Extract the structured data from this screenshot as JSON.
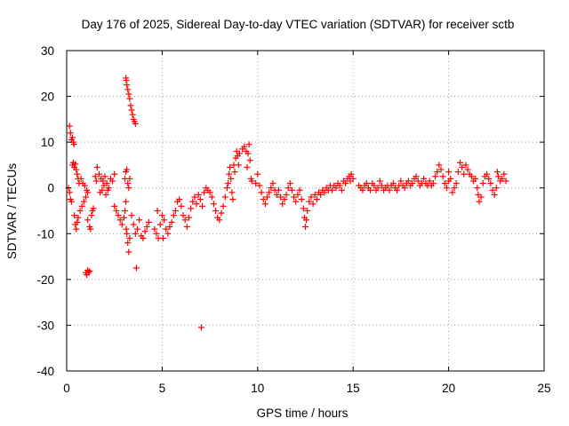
{
  "chart_data": {
    "type": "scatter",
    "title": "Day 176 of 2025, Sidereal Day-to-day VTEC variation (SDTVAR) for receiver sctb",
    "xlabel": "GPS time / hours",
    "ylabel": "SDTVAR / TECUs",
    "xlim": [
      0,
      25
    ],
    "ylim": [
      -40,
      30
    ],
    "x_ticks": [
      0,
      5,
      10,
      15,
      20,
      25
    ],
    "y_ticks": [
      30,
      20,
      10,
      0,
      -10,
      -20,
      -30,
      -40
    ],
    "grid": true,
    "marker": "+",
    "color": "#ff0000",
    "series": [
      {
        "name": "SDTVAR",
        "points": [
          [
            0.15,
            13.5
          ],
          [
            0.2,
            12.0
          ],
          [
            0.25,
            10.5
          ],
          [
            0.3,
            11.0
          ],
          [
            0.35,
            10.0
          ],
          [
            0.38,
            9.5
          ],
          [
            0.1,
            0.0
          ],
          [
            0.15,
            -1.0
          ],
          [
            0.2,
            -2.5
          ],
          [
            0.25,
            -3.0
          ],
          [
            0.3,
            5.0
          ],
          [
            0.35,
            5.5
          ],
          [
            0.4,
            4.5
          ],
          [
            0.45,
            5.2
          ],
          [
            0.5,
            4.0
          ],
          [
            0.55,
            3.0
          ],
          [
            0.6,
            2.0
          ],
          [
            0.65,
            1.0
          ],
          [
            0.4,
            -6.0
          ],
          [
            0.45,
            -8.0
          ],
          [
            0.5,
            -9.0
          ],
          [
            0.55,
            -7.5
          ],
          [
            0.6,
            -6.5
          ],
          [
            0.7,
            -5.0
          ],
          [
            0.8,
            -4.0
          ],
          [
            0.9,
            -3.0
          ],
          [
            1.0,
            -2.0
          ],
          [
            0.75,
            2.0
          ],
          [
            0.85,
            1.0
          ],
          [
            0.95,
            0.5
          ],
          [
            1.05,
            -0.5
          ],
          [
            1.1,
            -1.0
          ],
          [
            1.0,
            -18.5
          ],
          [
            1.05,
            -19.0
          ],
          [
            1.1,
            -18.0
          ],
          [
            1.15,
            -18.5
          ],
          [
            1.2,
            -18.2
          ],
          [
            1.1,
            -7.0
          ],
          [
            1.2,
            -8.5
          ],
          [
            1.25,
            -9.0
          ],
          [
            1.3,
            -6.0
          ],
          [
            1.35,
            -5.0
          ],
          [
            1.4,
            -4.5
          ],
          [
            1.5,
            2.5
          ],
          [
            1.55,
            1.5
          ],
          [
            1.6,
            4.5
          ],
          [
            1.7,
            3.0
          ],
          [
            1.8,
            2.0
          ],
          [
            1.9,
            1.5
          ],
          [
            2.0,
            2.5
          ],
          [
            2.1,
            1.0
          ],
          [
            2.2,
            0.0
          ],
          [
            2.3,
            2.0
          ],
          [
            2.4,
            1.5
          ],
          [
            2.5,
            3.0
          ],
          [
            1.75,
            -1.0
          ],
          [
            1.85,
            -0.5
          ],
          [
            1.95,
            0.5
          ],
          [
            2.05,
            -1.5
          ],
          [
            2.15,
            -0.5
          ],
          [
            2.5,
            -4.0
          ],
          [
            2.6,
            -5.0
          ],
          [
            2.7,
            -6.0
          ],
          [
            2.8,
            -7.0
          ],
          [
            2.9,
            -8.0
          ],
          [
            3.0,
            -6.5
          ],
          [
            3.05,
            -5.0
          ],
          [
            3.1,
            -3.0
          ],
          [
            3.12,
            -9.0
          ],
          [
            3.15,
            -10.0
          ],
          [
            3.2,
            -12.0
          ],
          [
            3.25,
            -14.0
          ],
          [
            3.3,
            -11.0
          ],
          [
            3.1,
            24.0
          ],
          [
            3.12,
            23.5
          ],
          [
            3.15,
            22.5
          ],
          [
            3.2,
            21.5
          ],
          [
            3.25,
            20.5
          ],
          [
            3.3,
            19.5
          ],
          [
            3.35,
            18.0
          ],
          [
            3.4,
            17.0
          ],
          [
            3.45,
            16.0
          ],
          [
            3.5,
            15.0
          ],
          [
            3.55,
            14.5
          ],
          [
            3.6,
            14.0
          ],
          [
            3.05,
            2.0
          ],
          [
            3.1,
            3.5
          ],
          [
            3.15,
            4.0
          ],
          [
            3.2,
            1.0
          ],
          [
            3.25,
            0.0
          ],
          [
            3.3,
            2.0
          ],
          [
            3.4,
            -6.0
          ],
          [
            3.5,
            -8.0
          ],
          [
            3.6,
            -10.0
          ],
          [
            3.7,
            -9.0
          ],
          [
            3.8,
            -7.0
          ],
          [
            3.9,
            -10.5
          ],
          [
            4.0,
            -11.0
          ],
          [
            4.1,
            -9.5
          ],
          [
            4.2,
            -8.5
          ],
          [
            4.3,
            -7.5
          ],
          [
            3.65,
            -17.5
          ],
          [
            4.6,
            -9.0
          ],
          [
            4.7,
            -10.0
          ],
          [
            4.8,
            -11.0
          ],
          [
            4.9,
            -8.0
          ],
          [
            5.0,
            -6.0
          ],
          [
            5.1,
            -7.0
          ],
          [
            5.2,
            -9.0
          ],
          [
            5.3,
            -10.0
          ],
          [
            5.4,
            -8.5
          ],
          [
            5.5,
            -7.5
          ],
          [
            4.75,
            -5.0
          ],
          [
            5.05,
            -11.0
          ],
          [
            5.6,
            -6.0
          ],
          [
            5.7,
            -5.0
          ],
          [
            5.8,
            -3.0
          ],
          [
            5.9,
            -2.5
          ],
          [
            6.0,
            -4.0
          ],
          [
            6.1,
            -6.0
          ],
          [
            6.2,
            -7.0
          ],
          [
            6.3,
            -8.5
          ],
          [
            6.4,
            -6.5
          ],
          [
            6.5,
            -4.5
          ],
          [
            6.6,
            -3.0
          ],
          [
            6.7,
            -2.0
          ],
          [
            6.8,
            -3.5
          ],
          [
            6.9,
            -1.5
          ],
          [
            7.0,
            -2.5
          ],
          [
            7.1,
            -4.0
          ],
          [
            7.2,
            -1.0
          ],
          [
            7.3,
            0.0
          ],
          [
            7.4,
            -0.5
          ],
          [
            7.5,
            -1.0
          ],
          [
            7.6,
            -2.0
          ],
          [
            7.7,
            -3.5
          ],
          [
            7.8,
            -5.0
          ],
          [
            7.9,
            -6.5
          ],
          [
            8.0,
            -7.0
          ],
          [
            8.1,
            -5.5
          ],
          [
            8.2,
            -4.0
          ],
          [
            8.3,
            -2.0
          ],
          [
            8.4,
            0.0
          ],
          [
            7.05,
            -30.5
          ],
          [
            8.45,
            1.0
          ],
          [
            8.5,
            3.0
          ],
          [
            8.55,
            4.5
          ],
          [
            8.6,
            2.0
          ],
          [
            8.65,
            -1.0
          ],
          [
            8.7,
            -2.5
          ],
          [
            8.75,
            5.0
          ],
          [
            8.8,
            3.5
          ],
          [
            8.85,
            6.5
          ],
          [
            8.9,
            8.0
          ],
          [
            8.95,
            7.0
          ],
          [
            9.0,
            5.0
          ],
          [
            9.05,
            7.5
          ],
          [
            9.2,
            8.5
          ],
          [
            9.3,
            9.0
          ],
          [
            9.4,
            8.0
          ],
          [
            9.5,
            7.5
          ],
          [
            9.55,
            9.5
          ],
          [
            9.6,
            6.0
          ],
          [
            9.45,
            4.5
          ],
          [
            9.65,
            2.0
          ],
          [
            9.7,
            1.5
          ],
          [
            9.9,
            1.0
          ],
          [
            10.0,
            3.0
          ],
          [
            10.1,
            0.5
          ],
          [
            10.2,
            -1.0
          ],
          [
            10.3,
            -2.5
          ],
          [
            10.4,
            -3.5
          ],
          [
            10.5,
            -2.0
          ],
          [
            10.6,
            -1.0
          ],
          [
            10.7,
            0.0
          ],
          [
            10.8,
            1.0
          ],
          [
            10.9,
            -0.5
          ],
          [
            11.0,
            -1.5
          ],
          [
            11.1,
            -0.5
          ],
          [
            11.2,
            -2.0
          ],
          [
            11.3,
            -3.5
          ],
          [
            11.4,
            -2.5
          ],
          [
            11.5,
            -1.5
          ],
          [
            11.6,
            0.0
          ],
          [
            11.7,
            1.0
          ],
          [
            11.8,
            -0.5
          ],
          [
            11.9,
            -2.0
          ],
          [
            12.0,
            -3.0
          ],
          [
            12.1,
            -1.5
          ],
          [
            12.2,
            -0.5
          ],
          [
            12.3,
            -2.5
          ],
          [
            12.4,
            -4.5
          ],
          [
            12.45,
            -6.5
          ],
          [
            12.5,
            -8.5
          ],
          [
            12.55,
            -7.0
          ],
          [
            12.6,
            -5.0
          ],
          [
            12.7,
            -3.0
          ],
          [
            12.8,
            -2.0
          ],
          [
            12.9,
            -3.5
          ],
          [
            13.0,
            -1.5
          ],
          [
            13.1,
            -2.5
          ],
          [
            13.2,
            -1.0
          ],
          [
            13.3,
            -1.5
          ],
          [
            13.4,
            -0.5
          ],
          [
            13.5,
            -1.0
          ],
          [
            13.6,
            0.0
          ],
          [
            13.7,
            -0.5
          ],
          [
            13.8,
            0.5
          ],
          [
            13.9,
            -0.5
          ],
          [
            14.0,
            0.5
          ],
          [
            14.1,
            0.0
          ],
          [
            14.2,
            1.0
          ],
          [
            14.3,
            0.5
          ],
          [
            14.4,
            -0.5
          ],
          [
            14.5,
            1.5
          ],
          [
            14.6,
            1.0
          ],
          [
            14.7,
            2.0
          ],
          [
            14.8,
            2.5
          ],
          [
            14.9,
            3.0
          ],
          [
            15.0,
            2.0
          ],
          [
            14.85,
            1.5
          ],
          [
            15.3,
            0.5
          ],
          [
            15.4,
            0.0
          ],
          [
            15.5,
            -0.5
          ],
          [
            15.6,
            0.5
          ],
          [
            15.7,
            1.0
          ],
          [
            15.8,
            0.0
          ],
          [
            15.9,
            -0.5
          ],
          [
            16.0,
            1.0
          ],
          [
            16.1,
            0.5
          ],
          [
            16.2,
            -0.5
          ],
          [
            16.3,
            0.0
          ],
          [
            16.4,
            1.5
          ],
          [
            16.5,
            0.5
          ],
          [
            16.6,
            -0.5
          ],
          [
            16.7,
            0.0
          ],
          [
            16.8,
            0.5
          ],
          [
            16.9,
            -0.5
          ],
          [
            17.0,
            0.5
          ],
          [
            17.1,
            1.0
          ],
          [
            17.2,
            0.0
          ],
          [
            17.3,
            -0.5
          ],
          [
            17.4,
            0.5
          ],
          [
            17.5,
            1.5
          ],
          [
            17.6,
            0.5
          ],
          [
            17.7,
            0.0
          ],
          [
            17.8,
            1.0
          ],
          [
            17.9,
            1.5
          ],
          [
            18.0,
            0.5
          ],
          [
            18.1,
            1.0
          ],
          [
            18.2,
            2.0
          ],
          [
            18.3,
            2.5
          ],
          [
            18.4,
            1.5
          ],
          [
            18.5,
            0.5
          ],
          [
            18.6,
            1.0
          ],
          [
            18.7,
            2.0
          ],
          [
            18.8,
            1.0
          ],
          [
            18.9,
            0.5
          ],
          [
            19.0,
            1.5
          ],
          [
            19.1,
            0.5
          ],
          [
            19.2,
            1.0
          ],
          [
            19.3,
            2.5
          ],
          [
            19.4,
            3.5
          ],
          [
            19.5,
            5.0
          ],
          [
            19.6,
            4.0
          ],
          [
            19.7,
            2.5
          ],
          [
            19.8,
            1.0
          ],
          [
            19.9,
            0.0
          ],
          [
            20.0,
            1.5
          ],
          [
            20.0,
            3.5
          ],
          [
            20.1,
            2.0
          ],
          [
            20.2,
            -1.0
          ],
          [
            20.3,
            0.0
          ],
          [
            20.4,
            1.0
          ],
          [
            20.5,
            3.5
          ],
          [
            20.6,
            5.5
          ],
          [
            20.7,
            4.5
          ],
          [
            20.8,
            3.0
          ],
          [
            20.9,
            5.0
          ],
          [
            21.0,
            4.0
          ],
          [
            21.1,
            3.0
          ],
          [
            21.2,
            2.5
          ],
          [
            21.3,
            1.5
          ],
          [
            21.4,
            2.0
          ],
          [
            21.5,
            0.0
          ],
          [
            21.55,
            -1.5
          ],
          [
            21.6,
            -3.0
          ],
          [
            21.7,
            -2.0
          ],
          [
            21.8,
            1.0
          ],
          [
            21.9,
            2.5
          ],
          [
            22.0,
            3.0
          ],
          [
            22.1,
            2.0
          ],
          [
            22.2,
            1.0
          ],
          [
            22.3,
            -0.5
          ],
          [
            22.4,
            -1.5
          ],
          [
            22.5,
            0.0
          ],
          [
            22.55,
            3.5
          ],
          [
            22.6,
            2.5
          ],
          [
            22.7,
            1.5
          ],
          [
            22.8,
            2.0
          ],
          [
            22.9,
            3.0
          ],
          [
            23.0,
            1.5
          ]
        ]
      }
    ]
  }
}
